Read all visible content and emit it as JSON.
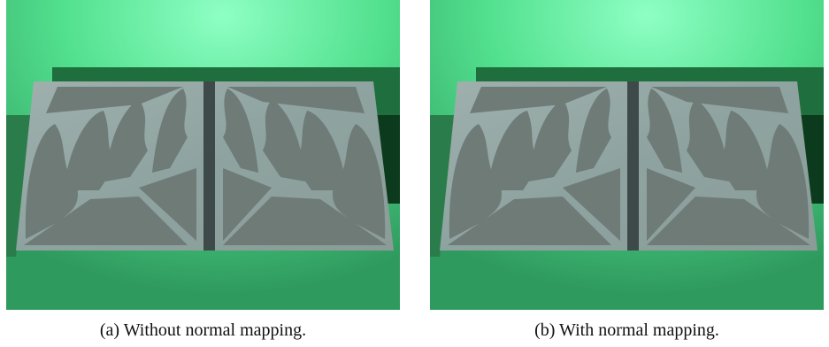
{
  "figure": {
    "panels": [
      {
        "caption": "(a) Without normal mapping."
      },
      {
        "caption": "(b) With normal mapping."
      }
    ]
  }
}
